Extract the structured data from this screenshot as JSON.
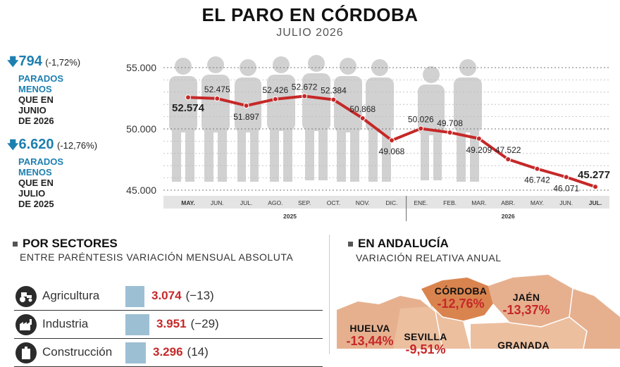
{
  "title": "EL PARO EN CÓRDOBA",
  "subtitle": "JULIO 2026",
  "kpis": [
    {
      "value": "794",
      "pct": "(-1,72%)",
      "desc_blue": "PARADOS\nMENOS",
      "desc_dark": "QUE EN\nJUNIO\nDE 2026"
    },
    {
      "value": "6.620",
      "pct": "(-12,76%)",
      "desc_blue": "PARADOS\nMENOS",
      "desc_dark": "QUE EN\nJULIO\nDE 2025"
    }
  ],
  "chart_data": {
    "type": "line",
    "categories": [
      "MAY.",
      "JUN.",
      "JUL.",
      "AGO.",
      "SEP.",
      "OCT.",
      "NOV.",
      "DIC.",
      "ENE.",
      "FEB.",
      "MAR.",
      "ABR.",
      "MAY.",
      "JUN.",
      "JUL."
    ],
    "values": [
      52574,
      52475,
      51897,
      52426,
      52672,
      52384,
      50868,
      49068,
      50026,
      49708,
      49209,
      47522,
      46742,
      46071,
      45277
    ],
    "value_labels": [
      "52.574",
      "52.475",
      "51.897",
      "52.426",
      "52.672",
      "52.384",
      "50.868",
      "49.068",
      "50.026",
      "49.708",
      "49.209",
      "47.522",
      "46.742",
      "46.071",
      "45.277"
    ],
    "year_groups": [
      {
        "label": "2025",
        "from": 0,
        "to": 7
      },
      {
        "label": "2026",
        "from": 8,
        "to": 14
      }
    ],
    "ylim": [
      45000,
      55000
    ],
    "yticks": [
      {
        "value": 45000,
        "label": "45.000"
      },
      {
        "value": 50000,
        "label": "50.000"
      },
      {
        "value": 55000,
        "label": "55.000"
      }
    ],
    "grid": true,
    "line_color": "#c62828"
  },
  "sectors": {
    "heading": "POR SECTORES",
    "subheading": "ENTRE PARÉNTESIS VARIACIÓN MENSUAL ABSOLUTA",
    "items": [
      {
        "name": "Agricultura",
        "value": 3074,
        "value_label": "3.074",
        "change": "(−13)",
        "icon": "tractor-icon"
      },
      {
        "name": "Industria",
        "value": 3951,
        "value_label": "3.951",
        "change": "(−29)",
        "icon": "factory-icon"
      },
      {
        "name": "Construcción",
        "value": 3296,
        "value_label": "3.296",
        "change": "(14)",
        "icon": "building-icon"
      }
    ]
  },
  "andalucia": {
    "heading": "EN ANDALUCÍA",
    "subheading": "VARIACIÓN RELATIVA ANUAL",
    "provinces": [
      {
        "name": "CÓRDOBA",
        "value": "-12,76%"
      },
      {
        "name": "JAÉN",
        "value": "-13,37%"
      },
      {
        "name": "HUELVA",
        "value": "-13,44%"
      },
      {
        "name": "SEVILLA",
        "value": "-9,51%"
      },
      {
        "name": "GRANADA",
        "value": ""
      }
    ]
  },
  "colors": {
    "accent": "#1d7fb0",
    "negative": "#c62828",
    "bar": "#9dbfd3",
    "map": "#e6b08f",
    "map_highlight": "#d9844f"
  }
}
